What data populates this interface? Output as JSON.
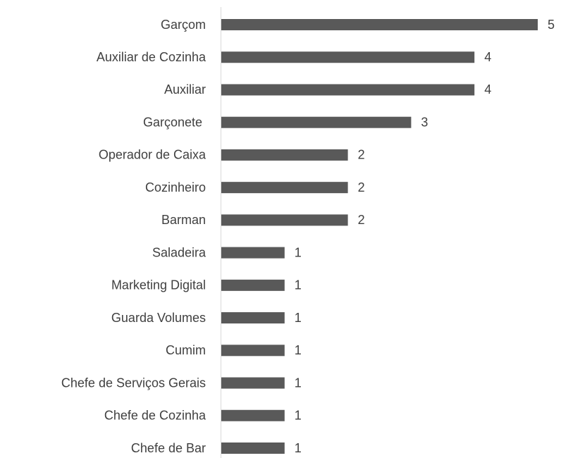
{
  "chart_data": {
    "type": "bar",
    "orientation": "horizontal",
    "categories": [
      "Garçom",
      "Auxiliar de Cozinha",
      "Auxiliar",
      "Garçonete ",
      "Operador de Caixa",
      "Cozinheiro",
      "Barman",
      "Saladeira",
      "Marketing Digital",
      "Guarda Volumes",
      "Cumim",
      "Chefe de Serviços Gerais",
      "Chefe de Cozinha",
      "Chefe de Bar"
    ],
    "values": [
      5,
      4,
      4,
      3,
      2,
      2,
      2,
      1,
      1,
      1,
      1,
      1,
      1,
      1
    ],
    "color": "#595959"
  }
}
